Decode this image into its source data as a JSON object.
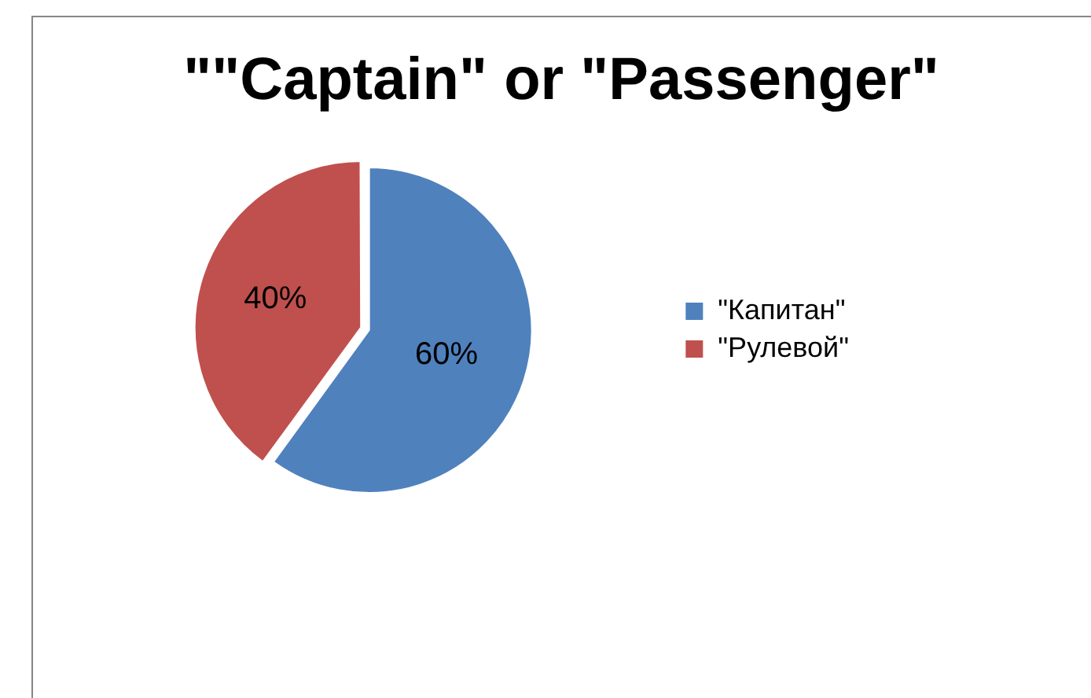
{
  "chart_data": {
    "type": "pie",
    "title": "\"\"Captain\" or \"Passenger\"",
    "categories": [
      "\"Капитан\"",
      "\"Рулевой\""
    ],
    "values": [
      60,
      40
    ],
    "colors": [
      "#4f81bd",
      "#c0504d"
    ],
    "value_labels": [
      "60%",
      "40%"
    ],
    "legend": "right"
  }
}
